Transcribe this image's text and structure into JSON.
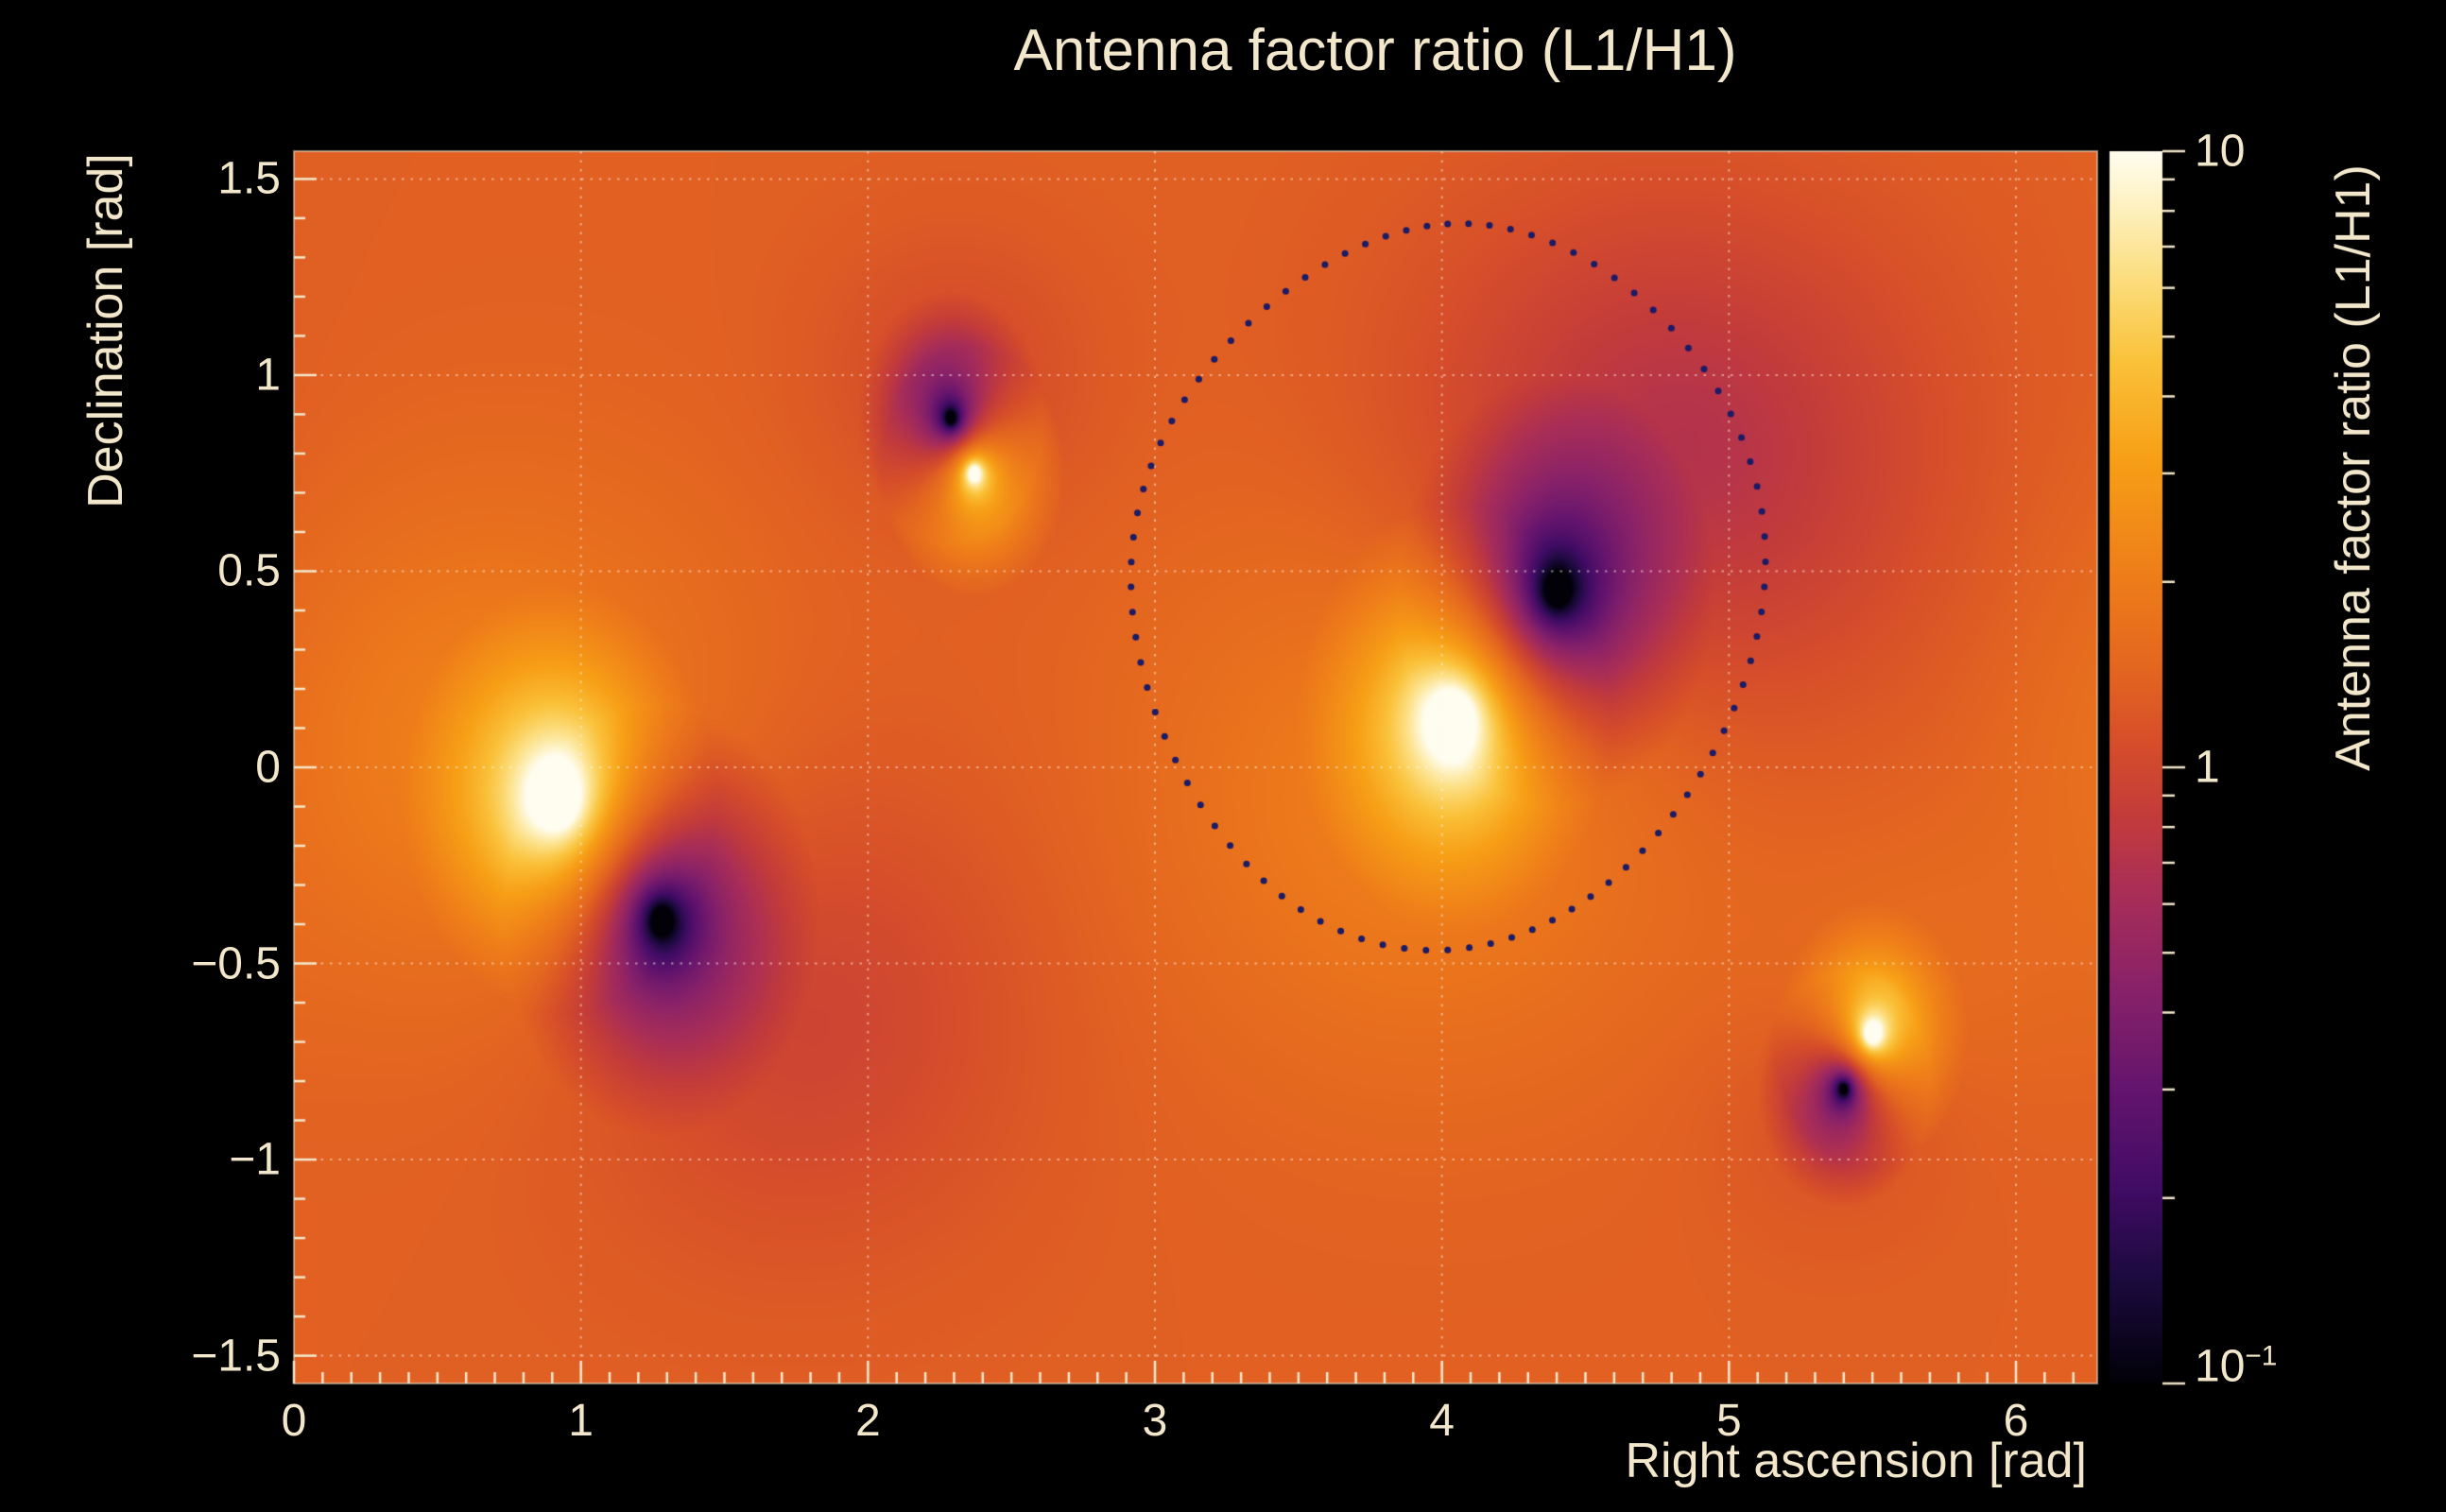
{
  "title": "Antenna factor ratio (L1/H1)",
  "colors": {
    "background": "#000000",
    "text": "#f3e7cb",
    "grid": "rgba(255,248,235,0.5)",
    "tick": "#f3e7cb",
    "contour_dots": "#1b1b66"
  },
  "chart_data": {
    "type": "heatmap",
    "title": "Antenna factor ratio (L1/H1)",
    "xlabel": "Right ascension [rad]",
    "ylabel": "Declination [rad]",
    "zlabel": "Antenna factor ratio (L1/H1)",
    "x_range": [
      0,
      6.2832
    ],
    "y_range": [
      -1.5708,
      1.5708
    ],
    "z_range": [
      0.1,
      10
    ],
    "z_scale": "log",
    "grid": true,
    "x_tick_values": [
      0,
      1,
      2,
      3,
      4,
      5,
      6
    ],
    "x_tick_labels": [
      "0",
      "1",
      "2",
      "3",
      "4",
      "5",
      "6"
    ],
    "y_tick_values": [
      -1.5,
      -1,
      -0.5,
      0,
      0.5,
      1,
      1.5
    ],
    "y_tick_labels": [
      "−1.5",
      "−1",
      "−0.5",
      "0",
      "0.5",
      "1",
      "1.5"
    ],
    "z_ticks": [
      {
        "label": "10",
        "sup": "",
        "pos": 1.0
      },
      {
        "label": "1",
        "sup": "",
        "pos": 0.5
      },
      {
        "label": "10",
        "sup": "−1",
        "pos": 0.0
      }
    ],
    "background_log10_ratio": 0.13,
    "bright_spots": [
      {
        "x": 0.92,
        "y": -0.08,
        "r": 0.55
      },
      {
        "x": 2.37,
        "y": 0.75,
        "r": 0.32
      },
      {
        "x": 4.04,
        "y": 0.12,
        "r": 0.55
      },
      {
        "x": 5.5,
        "y": -0.68,
        "r": 0.34
      }
    ],
    "dark_spots": [
      {
        "x": 1.28,
        "y": -0.39,
        "r": 0.55
      },
      {
        "x": 2.29,
        "y": 0.89,
        "r": 0.32
      },
      {
        "x": 4.4,
        "y": 0.45,
        "r": 0.55
      },
      {
        "x": 5.4,
        "y": -0.82,
        "r": 0.3
      }
    ],
    "diffuse_lobes": [
      {
        "x": 0.7,
        "y": 0.05,
        "a": 0.2,
        "sx": 0.6,
        "sy": 0.45
      },
      {
        "x": 3.95,
        "y": -0.05,
        "a": 0.2,
        "sx": 0.65,
        "sy": 0.48
      },
      {
        "x": 4.8,
        "y": 0.78,
        "a": -0.3,
        "sx": 0.62,
        "sy": 0.45
      },
      {
        "x": 1.75,
        "y": -0.62,
        "a": -0.16,
        "sx": 0.55,
        "sy": 0.42
      },
      {
        "x": 2.3,
        "y": 1.0,
        "a": -0.12,
        "sx": 0.32,
        "sy": 0.24
      },
      {
        "x": 5.37,
        "y": -0.9,
        "a": -0.08,
        "sx": 0.28,
        "sy": 0.2
      },
      {
        "x": 5.62,
        "y": -0.55,
        "a": 0.06,
        "sx": 0.35,
        "sy": 0.26
      }
    ],
    "localization_contour": {
      "cx": 4.02,
      "cy": 0.46,
      "rx": 1.07,
      "ry": 0.91,
      "points": 88
    },
    "colormap_stops": [
      [
        0.0,
        2,
        1,
        8
      ],
      [
        0.08,
        26,
        10,
        60
      ],
      [
        0.16,
        66,
        12,
        102
      ],
      [
        0.24,
        101,
        21,
        110
      ],
      [
        0.32,
        137,
        34,
        105
      ],
      [
        0.4,
        170,
        46,
        87
      ],
      [
        0.46,
        196,
        60,
        58
      ],
      [
        0.52,
        214,
        78,
        42
      ],
      [
        0.58,
        228,
        102,
        32
      ],
      [
        0.66,
        239,
        127,
        25
      ],
      [
        0.75,
        247,
        159,
        22
      ],
      [
        0.83,
        250,
        194,
        58
      ],
      [
        0.9,
        252,
        223,
        130
      ],
      [
        0.96,
        254,
        243,
        198
      ],
      [
        1.0,
        255,
        253,
        240
      ]
    ]
  }
}
